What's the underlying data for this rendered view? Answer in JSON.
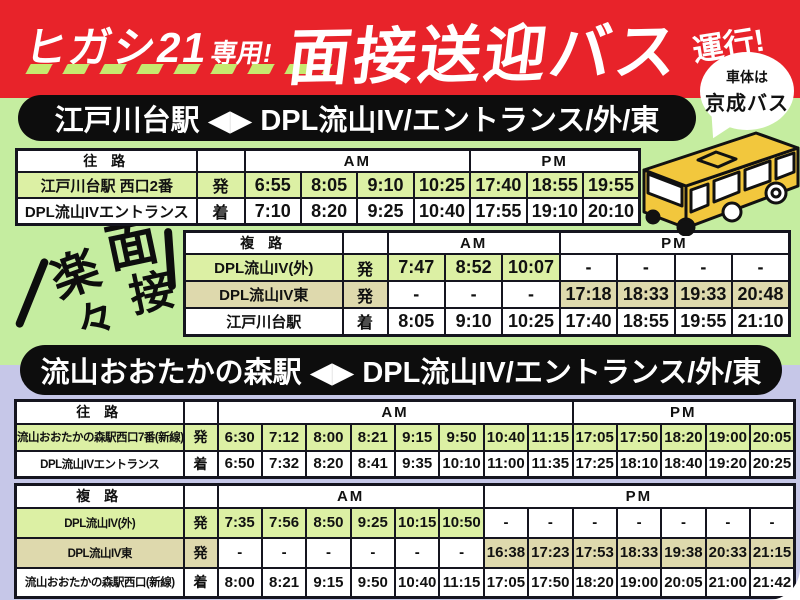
{
  "header": {
    "bus_line": "ヒガシ21",
    "exclusive": "専用!",
    "title": "面接送迎バス",
    "title_suffix": "運行!",
    "bubble_line1": "車体は",
    "bubble_line2": "京成バス"
  },
  "decoration": {
    "chars": [
      "楽",
      "々",
      "面",
      "接"
    ]
  },
  "sections": [
    {
      "title": "江戸川台駅 ◀▶ DPL流山IV/エントランス/外/東"
    },
    {
      "title": "流山おおたかの森駅 ◀▶ DPL流山IV/エントランス/外/東"
    }
  ],
  "tables": [
    {
      "route_label": "往 路",
      "am_label": "AM",
      "pm_label": "PM",
      "am_cols": 4,
      "pm_cols": 3,
      "rows": [
        {
          "station": "江戸川台駅 西口2番",
          "type": "発",
          "style": "green",
          "times": [
            "6:55",
            "8:05",
            "9:10",
            "10:25",
            "17:40",
            "18:55",
            "19:55"
          ]
        },
        {
          "station": "DPL流山IVエントランス",
          "type": "着",
          "style": "white",
          "times": [
            "7:10",
            "8:20",
            "9:25",
            "10:40",
            "17:55",
            "19:10",
            "20:10"
          ]
        }
      ]
    },
    {
      "route_label": "複 路",
      "am_label": "AM",
      "pm_label": "PM",
      "am_cols": 3,
      "pm_cols": 4,
      "rows": [
        {
          "station": "DPL流山IV(外)",
          "type": "発",
          "style": "green",
          "times": [
            "7:47",
            "8:52",
            "10:07",
            "-",
            "-",
            "-",
            "-"
          ]
        },
        {
          "station": "DPL流山IV東",
          "type": "発",
          "style": "beige",
          "times": [
            "-",
            "-",
            "-",
            "17:18",
            "18:33",
            "19:33",
            "20:48"
          ]
        },
        {
          "station": "江戸川台駅",
          "type": "着",
          "style": "white",
          "times": [
            "8:05",
            "9:10",
            "10:25",
            "17:40",
            "18:55",
            "19:55",
            "21:10"
          ]
        }
      ]
    },
    {
      "route_label": "往 路",
      "am_label": "AM",
      "pm_label": "PM",
      "am_cols": 8,
      "pm_cols": 5,
      "rows": [
        {
          "station": "流山おおたかの森駅西口7番(新線)",
          "type": "発",
          "style": "green",
          "times": [
            "6:30",
            "7:12",
            "8:00",
            "8:21",
            "9:15",
            "9:50",
            "10:40",
            "11:15",
            "17:05",
            "17:50",
            "18:20",
            "19:00",
            "20:05"
          ]
        },
        {
          "station": "DPL流山IVエントランス",
          "type": "着",
          "style": "white",
          "times": [
            "6:50",
            "7:32",
            "8:20",
            "8:41",
            "9:35",
            "10:10",
            "11:00",
            "11:35",
            "17:25",
            "18:10",
            "18:40",
            "19:20",
            "20:25"
          ]
        }
      ]
    },
    {
      "route_label": "複 路",
      "am_label": "AM",
      "pm_label": "PM",
      "am_cols": 6,
      "pm_cols": 7,
      "rows": [
        {
          "station": "DPL流山IV(外)",
          "type": "発",
          "style": "green",
          "times": [
            "7:35",
            "7:56",
            "8:50",
            "9:25",
            "10:15",
            "10:50",
            "-",
            "-",
            "-",
            "-",
            "-",
            "-",
            "-"
          ]
        },
        {
          "station": "DPL流山IV東",
          "type": "発",
          "style": "beige",
          "times": [
            "-",
            "-",
            "-",
            "-",
            "-",
            "-",
            "16:38",
            "17:23",
            "17:53",
            "18:33",
            "19:38",
            "20:33",
            "21:15"
          ]
        },
        {
          "station": "流山おおたかの森駅西口(新線)",
          "type": "着",
          "style": "white",
          "times": [
            "8:00",
            "8:21",
            "9:15",
            "9:50",
            "10:40",
            "11:15",
            "17:05",
            "17:50",
            "18:20",
            "19:00",
            "20:05",
            "21:00",
            "21:42"
          ]
        }
      ]
    }
  ],
  "colors": {
    "red": "#e8232a",
    "green_bg": "#c5eda0",
    "lavender_bg": "#c6c7e8",
    "highlight_green": "#dcf0a4",
    "highlight_beige": "#ded9ad",
    "bus_yellow": "#f2c73d",
    "dash_green": "#c6e96f"
  }
}
